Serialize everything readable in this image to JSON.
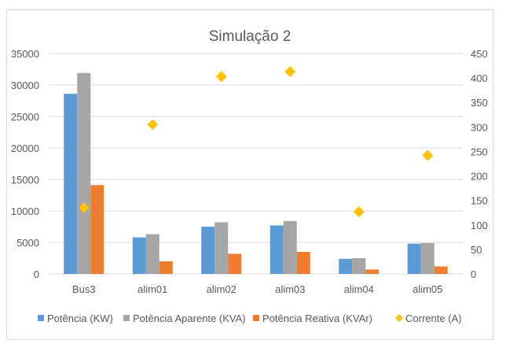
{
  "chart_data": {
    "type": "bar",
    "title": "Simulação 2",
    "categories": [
      "Bus3",
      "alim01",
      "alim02",
      "alim03",
      "alim04",
      "alim05"
    ],
    "series": [
      {
        "name": "Potência (KW)",
        "type": "bar",
        "axis": "left",
        "color": "#5b9bd5",
        "values": [
          28600,
          5800,
          7500,
          7700,
          2400,
          4800
        ]
      },
      {
        "name": "Potência Aparente (KVA)",
        "type": "bar",
        "axis": "left",
        "color": "#a5a5a5",
        "values": [
          31900,
          6300,
          8200,
          8400,
          2500,
          4900
        ]
      },
      {
        "name": "Potência Reativa (KVAr)",
        "type": "bar",
        "axis": "left",
        "color": "#ed7d31",
        "values": [
          14100,
          2000,
          3200,
          3500,
          700,
          1200
        ]
      },
      {
        "name": "Corrente (A)",
        "type": "scatter",
        "marker": "diamond",
        "axis": "right",
        "color": "#ffc000",
        "values": [
          135,
          305,
          403,
          413,
          127,
          242
        ]
      }
    ],
    "yleft": {
      "ylim": [
        0,
        35000
      ],
      "ticks": [
        "0",
        "5000",
        "10000",
        "15000",
        "20000",
        "25000",
        "30000",
        "35000"
      ]
    },
    "yright": {
      "ylim": [
        0,
        450
      ],
      "ticks": [
        "0",
        "50",
        "100",
        "150",
        "200",
        "250",
        "300",
        "350",
        "400",
        "450"
      ]
    },
    "grid": true,
    "legend_position": "bottom"
  }
}
